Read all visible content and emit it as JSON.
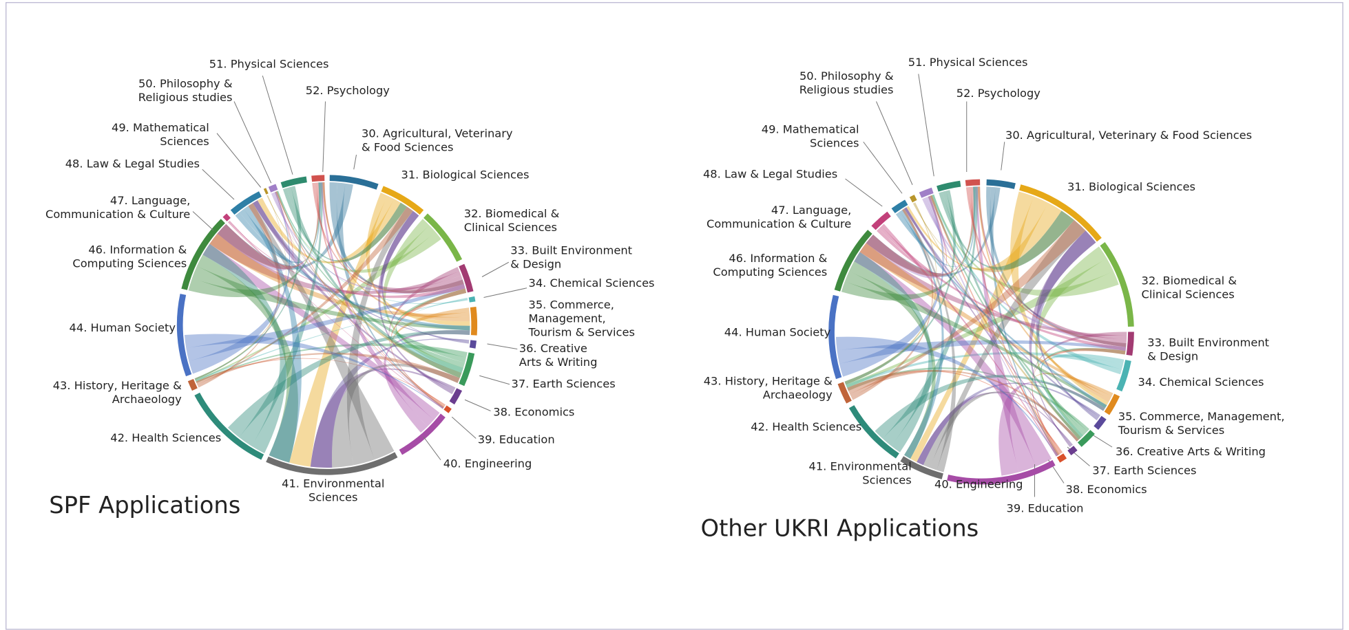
{
  "diagrams": [
    {
      "title": "SPF Applications",
      "nodes": [
        {
          "label": [
            "30. Agricultural, Veterinary",
            "& Food Sciences"
          ],
          "color": "#2a6f97"
        },
        {
          "label": [
            "31. Biological Sciences"
          ],
          "color": "#e6a817"
        },
        {
          "label": [
            "32. Biomedical &",
            "Clinical Sciences"
          ],
          "color": "#7ab648"
        },
        {
          "label": [
            "33. Built Environment",
            "& Design"
          ],
          "color": "#a23b72"
        },
        {
          "label": [
            "34. Chemical Sciences"
          ],
          "color": "#4bb3b3"
        },
        {
          "label": [
            "35. Commerce,",
            "Management,",
            "Tourism & Services"
          ],
          "color": "#e08a1e"
        },
        {
          "label": [
            "36. Creative",
            "Arts & Writing"
          ],
          "color": "#5b4a9b"
        },
        {
          "label": [
            "37. Earth Sciences"
          ],
          "color": "#3a9a5b"
        },
        {
          "label": [
            "38. Economics"
          ],
          "color": "#6b3d8f"
        },
        {
          "label": [
            "39. Education"
          ],
          "color": "#d9512c"
        },
        {
          "label": [
            "40. Engineering"
          ],
          "color": "#a64ca6"
        },
        {
          "label": [
            "41. Environmental",
            "Sciences"
          ],
          "color": "#6e6e6e"
        },
        {
          "label": [
            "42. Health Sciences"
          ],
          "color": "#2e8b7a"
        },
        {
          "label": [
            "43. History, Heritage &",
            "Archaeology"
          ],
          "color": "#c0643a"
        },
        {
          "label": [
            "44. Human Society"
          ],
          "color": "#4a72c4"
        },
        {
          "label": [
            "46. Information &",
            "Computing Sciences"
          ],
          "color": "#3e8a3e"
        },
        {
          "label": [
            "47. Language,",
            "Communication & Culture"
          ],
          "color": "#c2407a"
        },
        {
          "label": [
            "48. Law & Legal Studies"
          ],
          "color": "#2e7fa6"
        },
        {
          "label": [
            "49. Mathematical",
            "Sciences"
          ],
          "color": "#b8952a"
        },
        {
          "label": [
            "50. Philosophy &",
            "Religious studies"
          ],
          "color": "#a07fc7"
        },
        {
          "label": [
            "51. Physical Sciences"
          ],
          "color": "#2e8b6e"
        },
        {
          "label": [
            "52. Psychology"
          ],
          "color": "#d1524e"
        }
      ]
    },
    {
      "title": "Other UKRI Applications",
      "nodes": [
        {
          "label": [
            "30. Agricultural, Veterinary & Food Sciences"
          ],
          "color": "#2a6f97"
        },
        {
          "label": [
            "31. Biological Sciences"
          ],
          "color": "#e6a817"
        },
        {
          "label": [
            "32. Biomedical &",
            "Clinical Sciences"
          ],
          "color": "#7ab648"
        },
        {
          "label": [
            "33. Built Environment",
            "& Design"
          ],
          "color": "#a23b72"
        },
        {
          "label": [
            "34. Chemical Sciences"
          ],
          "color": "#4bb3b3"
        },
        {
          "label": [
            "35. Commerce, Management,",
            "Tourism & Services"
          ],
          "color": "#e08a1e"
        },
        {
          "label": [
            "36. Creative Arts & Writing"
          ],
          "color": "#5b4a9b"
        },
        {
          "label": [
            "37. Earth Sciences"
          ],
          "color": "#3a9a5b"
        },
        {
          "label": [
            "38. Economics"
          ],
          "color": "#6b3d8f"
        },
        {
          "label": [
            "39. Education"
          ],
          "color": "#d9512c"
        },
        {
          "label": [
            "40. Engineering"
          ],
          "color": "#a64ca6"
        },
        {
          "label": [
            "41. Environmental",
            "Sciences"
          ],
          "color": "#6e6e6e"
        },
        {
          "label": [
            "42. Health Sciences"
          ],
          "color": "#2e8b7a"
        },
        {
          "label": [
            "43. History, Heritage &",
            "Archaeology"
          ],
          "color": "#c0643a"
        },
        {
          "label": [
            "44. Human Society"
          ],
          "color": "#4a72c4"
        },
        {
          "label": [
            "46. Information &",
            "Computing Sciences"
          ],
          "color": "#3e8a3e"
        },
        {
          "label": [
            "47. Language,",
            "Communication & Culture"
          ],
          "color": "#c2407a"
        },
        {
          "label": [
            "48. Law & Legal Studies"
          ],
          "color": "#2e7fa6"
        },
        {
          "label": [
            "49. Mathematical",
            "Sciences"
          ],
          "color": "#b8952a"
        },
        {
          "label": [
            "50. Philosophy &",
            "Religious studies"
          ],
          "color": "#a07fc7"
        },
        {
          "label": [
            "51. Physical Sciences"
          ],
          "color": "#2e8b6e"
        },
        {
          "label": [
            "52. Psychology"
          ],
          "color": "#d1524e"
        }
      ]
    }
  ]
}
